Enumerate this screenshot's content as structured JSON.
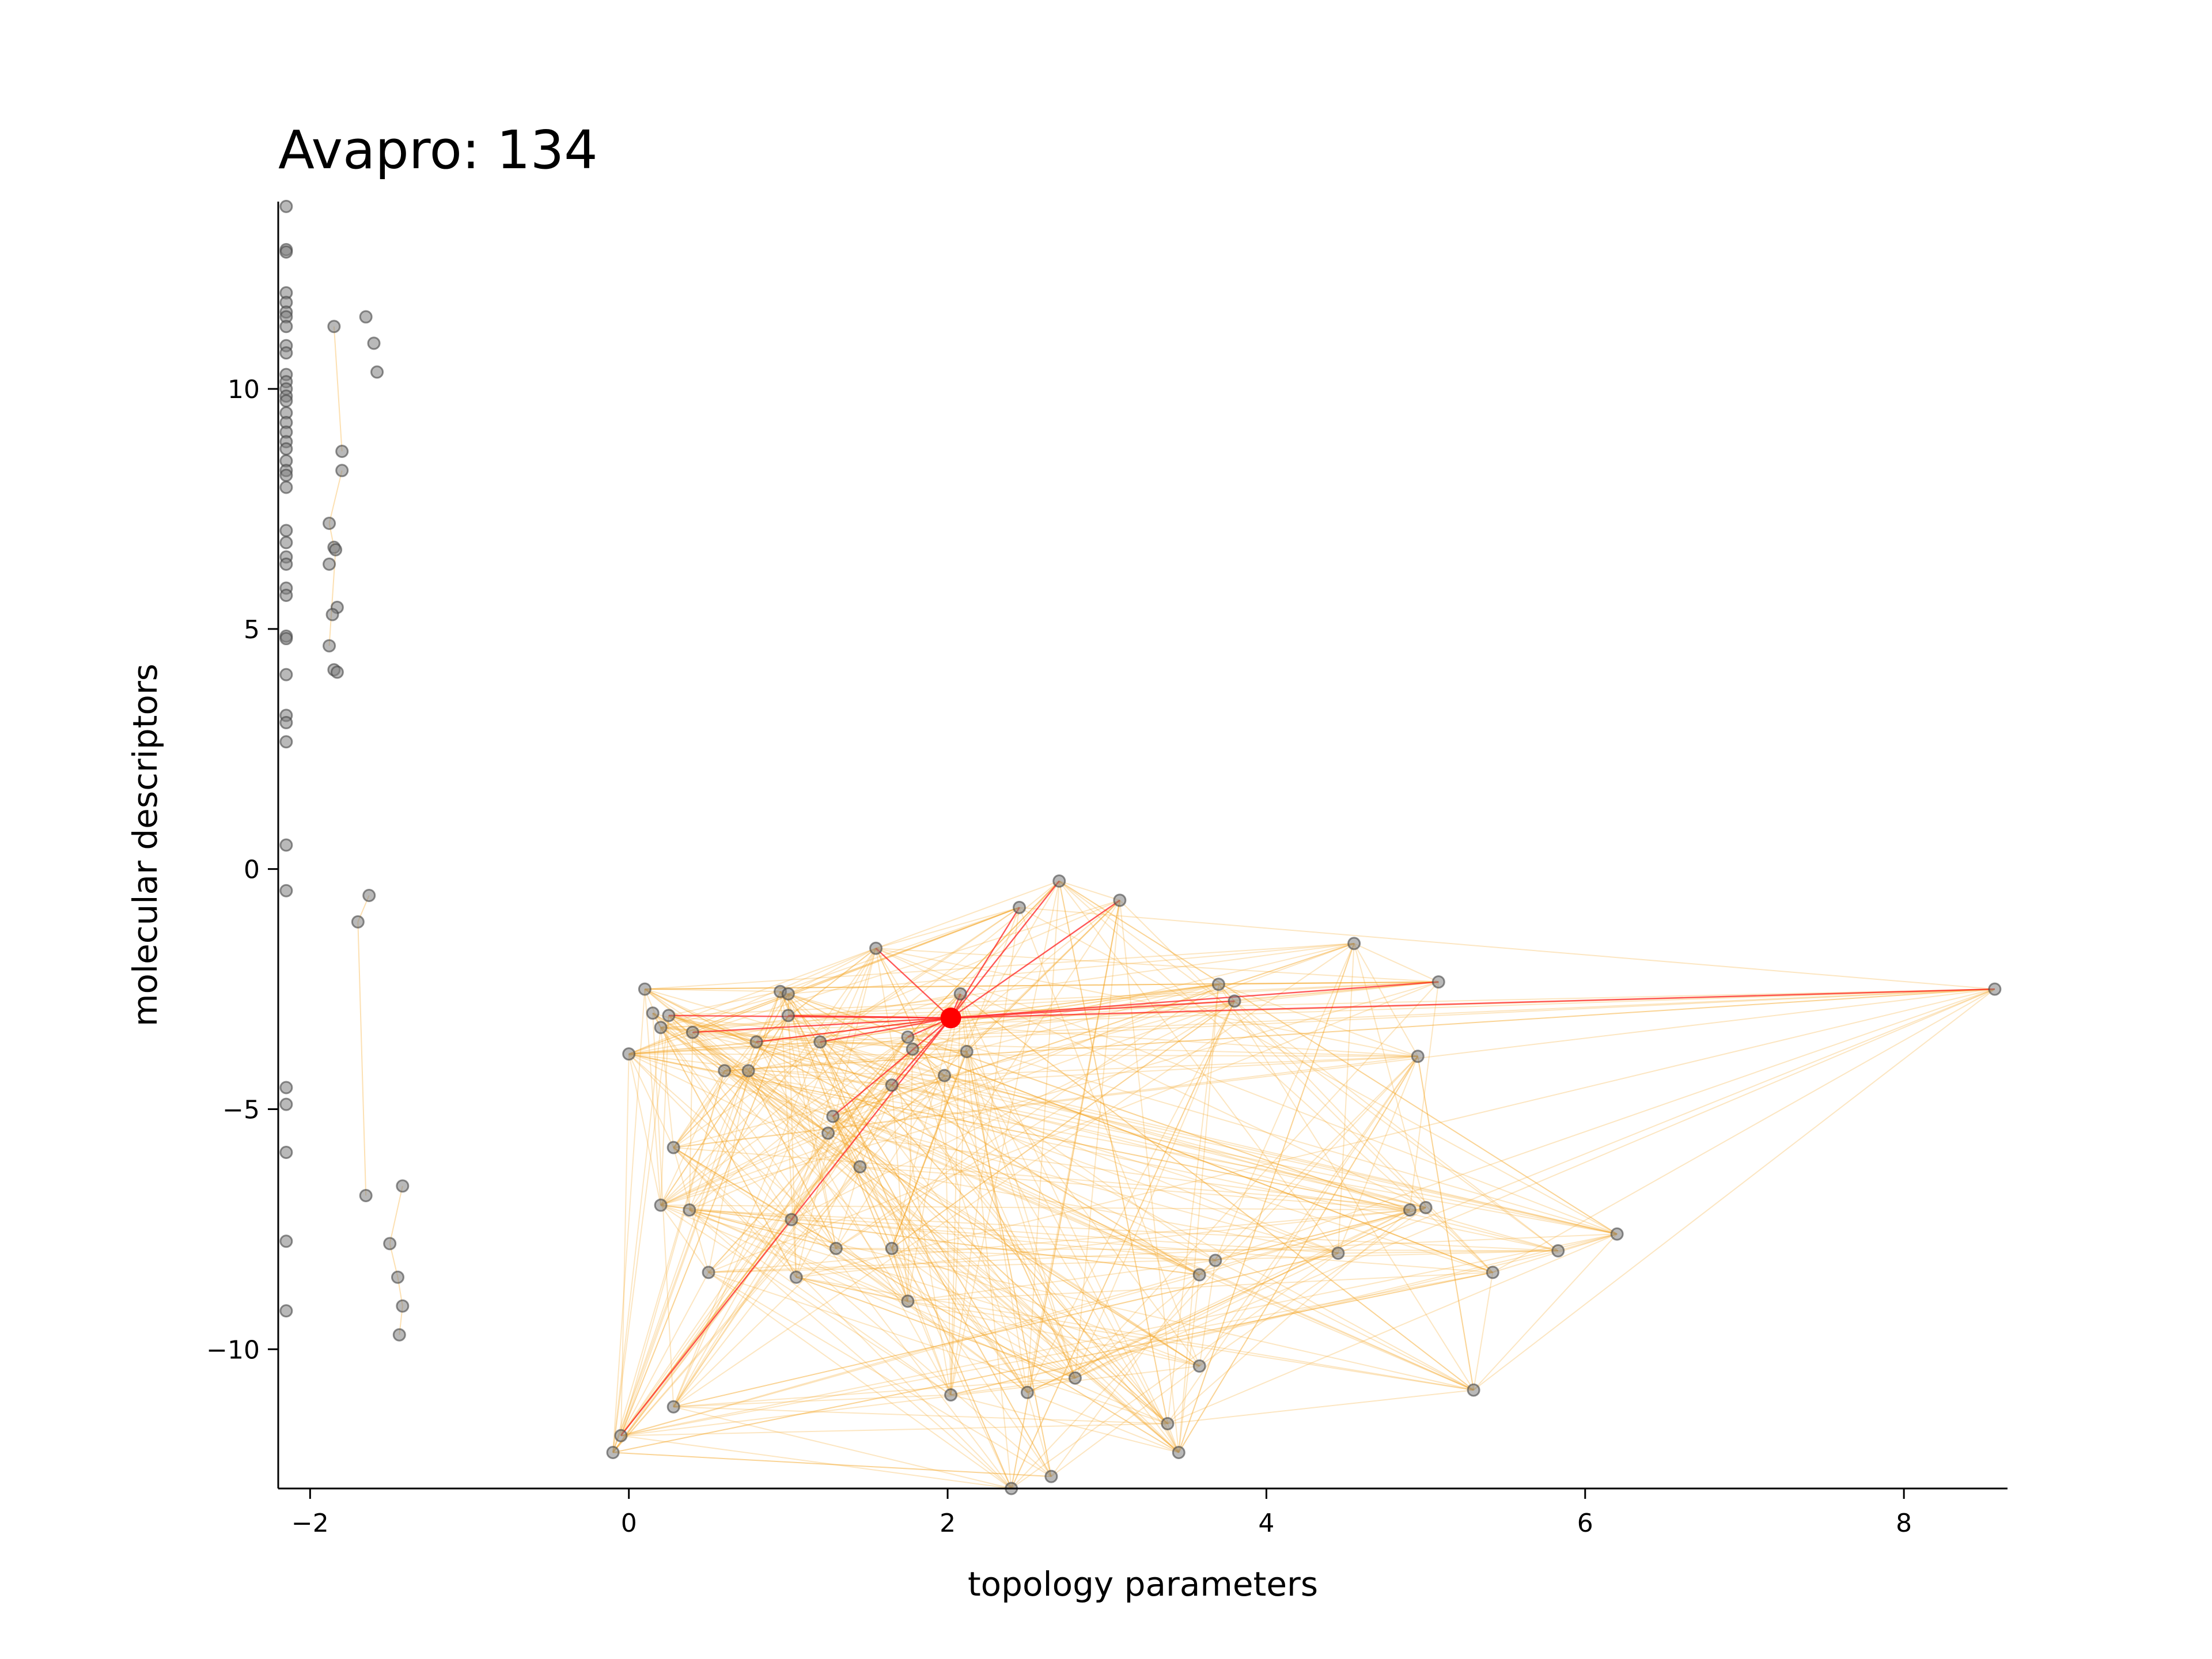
{
  "chart_data": {
    "type": "scatter",
    "title": "Avapro: 134",
    "xlabel": "topology parameters",
    "ylabel": "molecular descriptors",
    "xlim": [
      -2.2,
      8.65
    ],
    "ylim": [
      -12.9,
      13.9
    ],
    "xticks": [
      -2,
      0,
      2,
      4,
      6,
      8
    ],
    "yticks": [
      -10,
      -5,
      0,
      5,
      10
    ],
    "xtick_labels": [
      "−2",
      "0",
      "2",
      "4",
      "6",
      "8"
    ],
    "ytick_labels": [
      "−10",
      "−5",
      "0",
      "5",
      "10"
    ],
    "grid": false,
    "colors": {
      "point": "#808080",
      "point_edge": "#444444",
      "highlight": "#ff0000",
      "edge_minor": "#f5a623",
      "edge_major": "#ff2020"
    },
    "highlight": {
      "name": "Avapro",
      "x": 2.02,
      "y": -3.1
    },
    "points": [
      [
        -2.15,
        13.8
      ],
      [
        -2.15,
        12.9
      ],
      [
        -2.15,
        12.85
      ],
      [
        -2.15,
        12.0
      ],
      [
        -2.15,
        11.8
      ],
      [
        -2.15,
        11.6
      ],
      [
        -2.15,
        11.5
      ],
      [
        -2.15,
        11.3
      ],
      [
        -2.15,
        10.9
      ],
      [
        -2.15,
        10.75
      ],
      [
        -2.15,
        10.3
      ],
      [
        -2.15,
        10.15
      ],
      [
        -2.15,
        10.0
      ],
      [
        -2.15,
        9.85
      ],
      [
        -2.15,
        9.75
      ],
      [
        -2.15,
        9.5
      ],
      [
        -2.15,
        9.3
      ],
      [
        -2.15,
        9.1
      ],
      [
        -2.15,
        8.9
      ],
      [
        -2.15,
        8.75
      ],
      [
        -2.15,
        8.5
      ],
      [
        -2.15,
        8.3
      ],
      [
        -2.15,
        8.2
      ],
      [
        -2.15,
        7.95
      ],
      [
        -2.15,
        7.05
      ],
      [
        -2.15,
        6.8
      ],
      [
        -2.15,
        6.5
      ],
      [
        -2.15,
        6.35
      ],
      [
        -2.15,
        5.85
      ],
      [
        -2.15,
        5.7
      ],
      [
        -2.15,
        4.85
      ],
      [
        -2.15,
        4.8
      ],
      [
        -2.15,
        4.05
      ],
      [
        -2.15,
        3.2
      ],
      [
        -2.15,
        3.05
      ],
      [
        -2.15,
        2.65
      ],
      [
        -2.15,
        0.5
      ],
      [
        -2.15,
        -0.45
      ],
      [
        -2.15,
        -4.55
      ],
      [
        -2.15,
        -4.9
      ],
      [
        -2.15,
        -5.9
      ],
      [
        -2.15,
        -7.75
      ],
      [
        -2.15,
        -9.2
      ],
      [
        -1.85,
        11.3
      ],
      [
        -1.65,
        11.5
      ],
      [
        -1.6,
        10.95
      ],
      [
        -1.58,
        10.35
      ],
      [
        -1.8,
        8.7
      ],
      [
        -1.8,
        8.3
      ],
      [
        -1.88,
        7.2
      ],
      [
        -1.85,
        6.7
      ],
      [
        -1.84,
        6.65
      ],
      [
        -1.88,
        6.35
      ],
      [
        -1.83,
        5.45
      ],
      [
        -1.86,
        5.3
      ],
      [
        -1.88,
        4.65
      ],
      [
        -1.85,
        4.15
      ],
      [
        -1.83,
        4.1
      ],
      [
        -1.63,
        -0.55
      ],
      [
        -1.7,
        -1.1
      ],
      [
        -1.65,
        -6.8
      ],
      [
        -1.42,
        -6.6
      ],
      [
        -1.5,
        -7.8
      ],
      [
        -1.45,
        -8.5
      ],
      [
        -1.42,
        -9.1
      ],
      [
        -1.44,
        -9.7
      ],
      [
        0.1,
        -2.5
      ],
      [
        0.15,
        -3.0
      ],
      [
        0.2,
        -3.3
      ],
      [
        0.25,
        -3.05
      ],
      [
        0.4,
        -3.4
      ],
      [
        0.0,
        -3.85
      ],
      [
        0.6,
        -4.2
      ],
      [
        0.75,
        -4.2
      ],
      [
        0.8,
        -3.6
      ],
      [
        0.95,
        -2.55
      ],
      [
        1.0,
        -2.6
      ],
      [
        1.0,
        -3.05
      ],
      [
        1.2,
        -3.6
      ],
      [
        1.28,
        -5.15
      ],
      [
        1.25,
        -5.5
      ],
      [
        1.45,
        -6.2
      ],
      [
        1.55,
        -1.65
      ],
      [
        1.65,
        -4.5
      ],
      [
        1.75,
        -3.5
      ],
      [
        1.78,
        -3.75
      ],
      [
        1.98,
        -4.3
      ],
      [
        2.08,
        -2.6
      ],
      [
        2.12,
        -3.8
      ],
      [
        0.28,
        -5.8
      ],
      [
        0.2,
        -7.0
      ],
      [
        0.38,
        -7.1
      ],
      [
        1.02,
        -7.3
      ],
      [
        1.3,
        -7.9
      ],
      [
        1.65,
        -7.9
      ],
      [
        0.5,
        -8.4
      ],
      [
        1.05,
        -8.5
      ],
      [
        1.75,
        -9.0
      ],
      [
        0.28,
        -11.2
      ],
      [
        -0.05,
        -11.8
      ],
      [
        -0.1,
        -12.15
      ],
      [
        2.45,
        -0.8
      ],
      [
        2.7,
        -0.25
      ],
      [
        3.08,
        -0.65
      ],
      [
        3.7,
        -2.4
      ],
      [
        3.8,
        -2.75
      ],
      [
        4.55,
        -1.55
      ],
      [
        5.08,
        -2.35
      ],
      [
        4.95,
        -3.9
      ],
      [
        8.57,
        -2.5
      ],
      [
        4.9,
        -7.1
      ],
      [
        5.0,
        -7.05
      ],
      [
        6.2,
        -7.6
      ],
      [
        5.83,
        -7.95
      ],
      [
        4.45,
        -8.0
      ],
      [
        3.68,
        -8.15
      ],
      [
        3.58,
        -8.45
      ],
      [
        5.42,
        -8.4
      ],
      [
        3.58,
        -10.35
      ],
      [
        2.8,
        -10.6
      ],
      [
        2.5,
        -10.9
      ],
      [
        2.02,
        -10.95
      ],
      [
        5.3,
        -10.85
      ],
      [
        3.38,
        -11.55
      ],
      [
        3.45,
        -12.15
      ],
      [
        2.65,
        -12.65
      ],
      [
        2.4,
        -12.9
      ]
    ],
    "edges_major": [
      [
        2.02,
        -3.1,
        2.7,
        -0.25
      ],
      [
        2.02,
        -3.1,
        3.08,
        -0.65
      ],
      [
        2.02,
        -3.1,
        2.45,
        -0.8
      ],
      [
        2.02,
        -3.1,
        1.55,
        -1.65
      ],
      [
        2.02,
        -3.1,
        8.57,
        -2.5
      ],
      [
        2.02,
        -3.1,
        5.08,
        -2.35
      ],
      [
        2.02,
        -3.1,
        3.8,
        -2.75
      ],
      [
        2.02,
        -3.1,
        0.25,
        -3.05
      ],
      [
        2.02,
        -3.1,
        0.4,
        -3.4
      ],
      [
        2.02,
        -3.1,
        1.0,
        -3.05
      ],
      [
        2.02,
        -3.1,
        2.08,
        -2.6
      ],
      [
        2.02,
        -3.1,
        1.2,
        -3.6
      ],
      [
        2.02,
        -3.1,
        1.28,
        -5.15
      ],
      [
        2.02,
        -3.1,
        1.65,
        -4.5
      ],
      [
        2.02,
        -3.1,
        -0.05,
        -11.8
      ],
      [
        2.02,
        -3.1,
        0.8,
        -3.6
      ],
      [
        2.02,
        -3.1,
        1.75,
        -3.5
      ]
    ]
  }
}
